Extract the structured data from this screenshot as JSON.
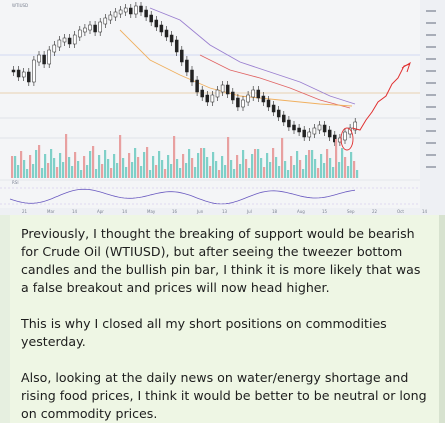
{
  "chart": {
    "symbol_label": "WTIUSD",
    "indicator_label": "RSI",
    "x_tick_labels": [
      "21",
      "Mar",
      "14",
      "Apr",
      "14",
      "May",
      "16",
      "Jun",
      "13",
      "Jul",
      "18",
      "Aug",
      "15",
      "Sep",
      "22",
      "Oct",
      "14"
    ],
    "colors": {
      "up_candle": "#222222",
      "down_candle": "#222222",
      "volume": "#7fd0c8",
      "projection": "#e03030",
      "ma_red": "#e06464",
      "ma_purple": "#9a7fd0",
      "ma_orange": "#f0b060",
      "rsi_line": "#6a5ac0"
    }
  },
  "message": {
    "paragraphs": [
      "Previously, I thought the breaking of support would be bearish for Crude Oil (WTIUSD), but after seeing the tweezer bottom candles and the bullish pin bar, I think it is more likely that was a false breakout and prices will now head higher.",
      "This is why I closed all my short positions on commodities yesterday.",
      "Also, looking at the daily news on water/energy shortage and rising food prices, I think it would be better to be neutral or long on commodity prices."
    ]
  }
}
